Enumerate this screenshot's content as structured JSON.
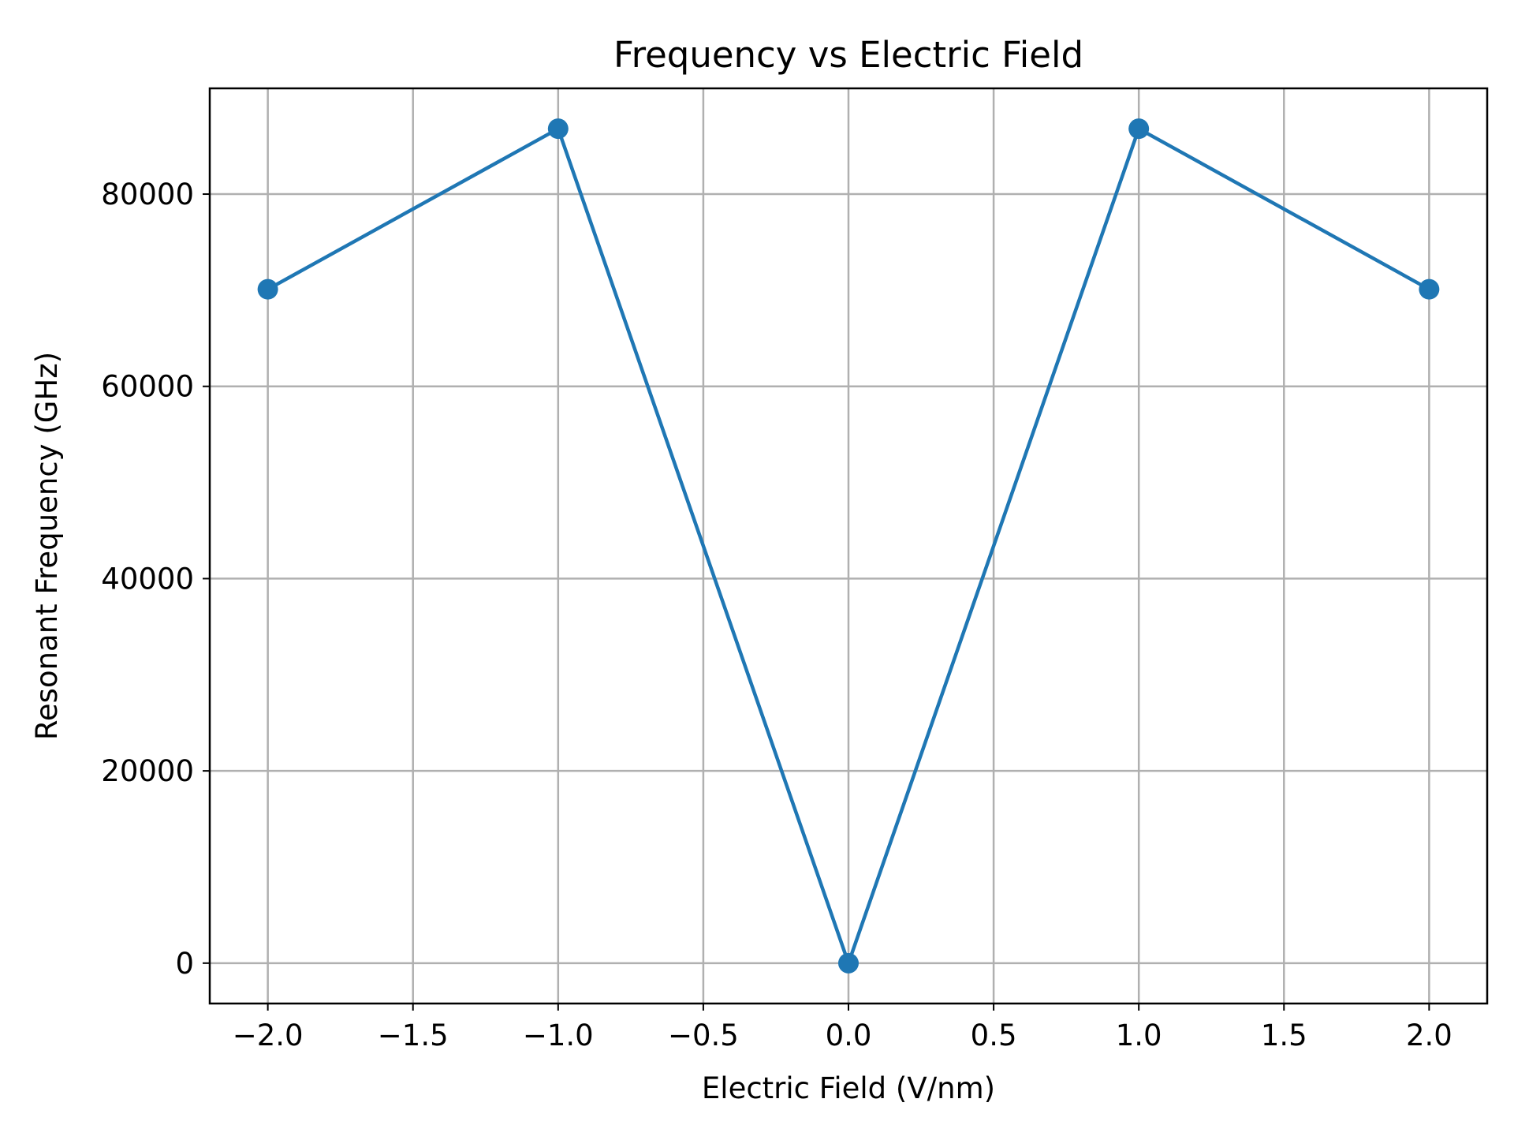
{
  "chart_data": {
    "type": "line",
    "title": "Frequency vs Electric Field",
    "xlabel": "Electric Field (V/nm)",
    "ylabel": "Resonant Frequency (GHz)",
    "xlim": [
      -2.2,
      2.2
    ],
    "ylim": [
      -4200,
      91000
    ],
    "grid": true,
    "x_ticks": [
      -2.0,
      -1.5,
      -1.0,
      -0.5,
      0.0,
      0.5,
      1.0,
      1.5,
      2.0
    ],
    "x_tick_labels": [
      "−2.0",
      "−1.5",
      "−1.0",
      "−0.5",
      "0.0",
      "0.5",
      "1.0",
      "1.5",
      "2.0"
    ],
    "y_ticks": [
      0,
      20000,
      40000,
      60000,
      80000
    ],
    "y_tick_labels": [
      "0",
      "20000",
      "40000",
      "60000",
      "80000"
    ],
    "series": [
      {
        "x": [
          -2,
          -1,
          0,
          1,
          2
        ],
        "y": [
          70100,
          86800,
          0,
          86800,
          70100
        ],
        "color": "#1f77b4",
        "marker": "circle"
      }
    ]
  }
}
